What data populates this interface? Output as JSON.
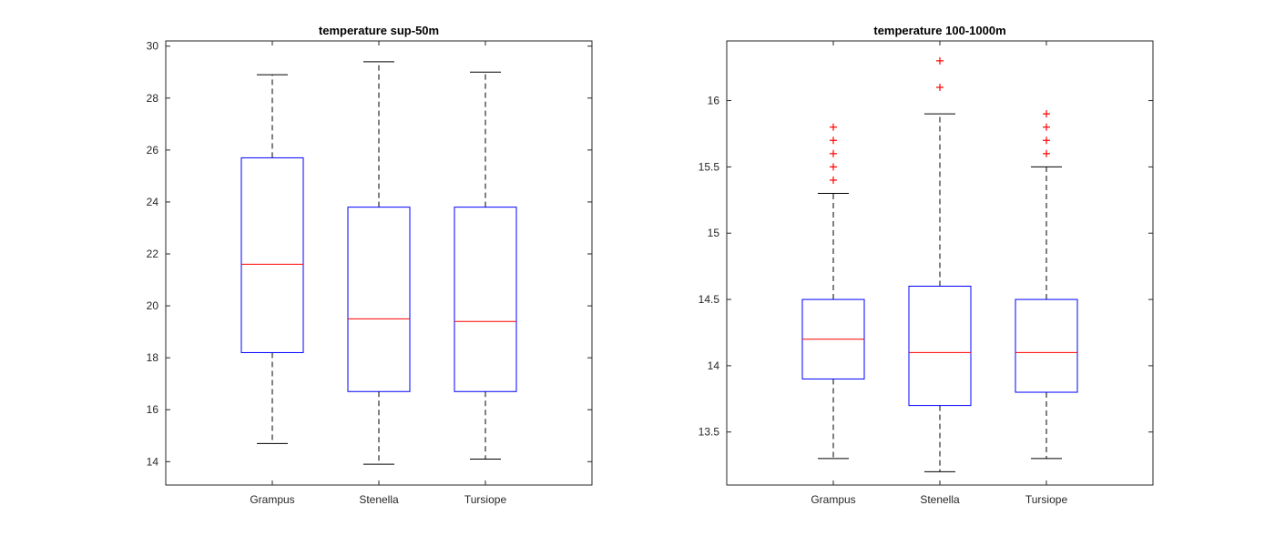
{
  "colors": {
    "box": "#0000ff",
    "median": "#ff0000",
    "whisker": "#000000",
    "outlier": "#ff0000",
    "axes": "#262626"
  },
  "chart_data": [
    {
      "type": "box",
      "title": "temperature sup-50m",
      "categories": [
        "Grampus",
        "Stenella",
        "Tursiope"
      ],
      "ylim": [
        13.1,
        30.2
      ],
      "yticks": [
        14,
        16,
        18,
        20,
        22,
        24,
        26,
        28,
        30
      ],
      "ytick_labels": [
        "14",
        "16",
        "18",
        "20",
        "22",
        "24",
        "26",
        "28",
        "30"
      ],
      "boxes": [
        {
          "category": "Grampus",
          "whisker_low": 14.7,
          "q1": 18.2,
          "median": 21.6,
          "q3": 25.7,
          "whisker_high": 28.9,
          "outliers": []
        },
        {
          "category": "Stenella",
          "whisker_low": 13.9,
          "q1": 16.7,
          "median": 19.5,
          "q3": 23.8,
          "whisker_high": 29.4,
          "outliers": []
        },
        {
          "category": "Tursiope",
          "whisker_low": 14.1,
          "q1": 16.7,
          "median": 19.4,
          "q3": 23.8,
          "whisker_high": 29.0,
          "outliers": []
        }
      ]
    },
    {
      "type": "box",
      "title": "temperature 100-1000m",
      "categories": [
        "Grampus",
        "Stenella",
        "Tursiope"
      ],
      "ylim": [
        13.1,
        16.45
      ],
      "yticks": [
        13.5,
        14,
        14.5,
        15,
        15.5,
        16
      ],
      "ytick_labels": [
        "13.5",
        "14",
        "14.5",
        "15",
        "15.5",
        "16"
      ],
      "boxes": [
        {
          "category": "Grampus",
          "whisker_low": 13.3,
          "q1": 13.9,
          "median": 14.2,
          "q3": 14.5,
          "whisker_high": 15.3,
          "outliers": [
            15.4,
            15.5,
            15.6,
            15.7,
            15.8
          ]
        },
        {
          "category": "Stenella",
          "whisker_low": 13.2,
          "q1": 13.7,
          "median": 14.1,
          "q3": 14.6,
          "whisker_high": 15.9,
          "outliers": [
            16.1,
            16.3
          ]
        },
        {
          "category": "Tursiope",
          "whisker_low": 13.3,
          "q1": 13.8,
          "median": 14.1,
          "q3": 14.5,
          "whisker_high": 15.5,
          "outliers": [
            15.6,
            15.7,
            15.8,
            15.9
          ]
        }
      ]
    }
  ]
}
